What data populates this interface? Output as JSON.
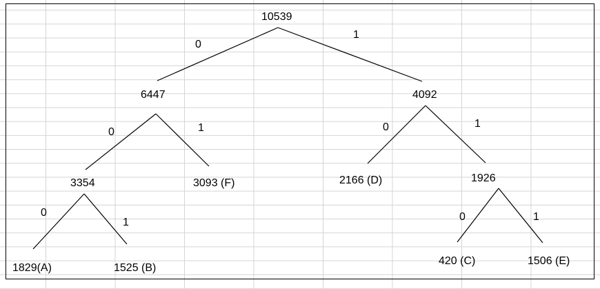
{
  "tree": {
    "nodes": {
      "root": "10539",
      "n6447": "6447",
      "n4092": "4092",
      "n3354": "3354",
      "leafF": "3093 (F)",
      "leafD": "2166 (D)",
      "n1926": "1926",
      "leafA": "1829(A)",
      "leafB": "1525 (B)",
      "leafC": "420 (C)",
      "leafE": "1506 (E)"
    },
    "edge_labels": {
      "root_left": "0",
      "root_right": "1",
      "n6447_left": "0",
      "n6447_right": "1",
      "n4092_left": "0",
      "n4092_right": "1",
      "n3354_left": "0",
      "n3354_right": "1",
      "n1926_left": "0",
      "n1926_right": "1"
    }
  },
  "colors": {
    "line": "#000000",
    "grid": "#d4d4d4",
    "background": "#ffffff"
  }
}
